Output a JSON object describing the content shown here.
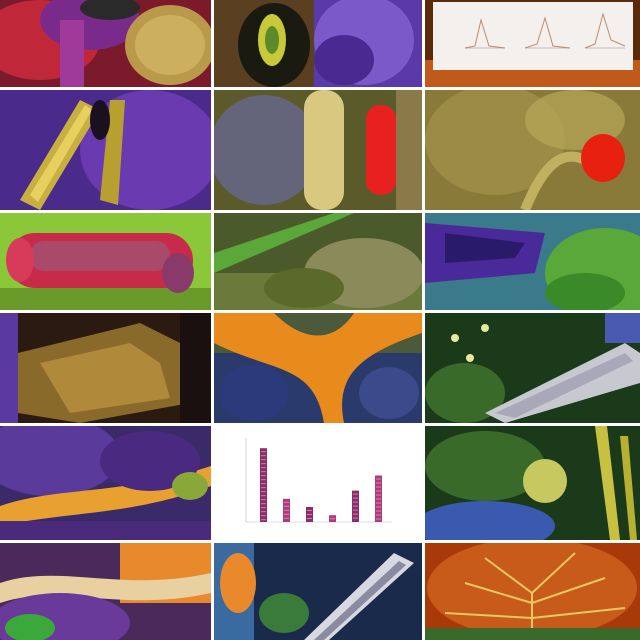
{
  "chart_data": {
    "type": "bar",
    "title": "",
    "xlabel": "",
    "ylabel": "",
    "categories": [
      "",
      "",
      "",
      "",
      "",
      ""
    ],
    "values": [
      5.4,
      1.7,
      1.1,
      0.5,
      2.3,
      3.4
    ],
    "ylim": [
      0,
      6
    ],
    "colors": [
      "#8e2c6a",
      "#b03a7a"
    ]
  },
  "palette": {
    "purple": "#6a3aa8",
    "green": "#5aa23a",
    "gold": "#c8a63a",
    "red": "#e01818",
    "orange": "#e88a1c",
    "blue": "#2a4a8a"
  }
}
